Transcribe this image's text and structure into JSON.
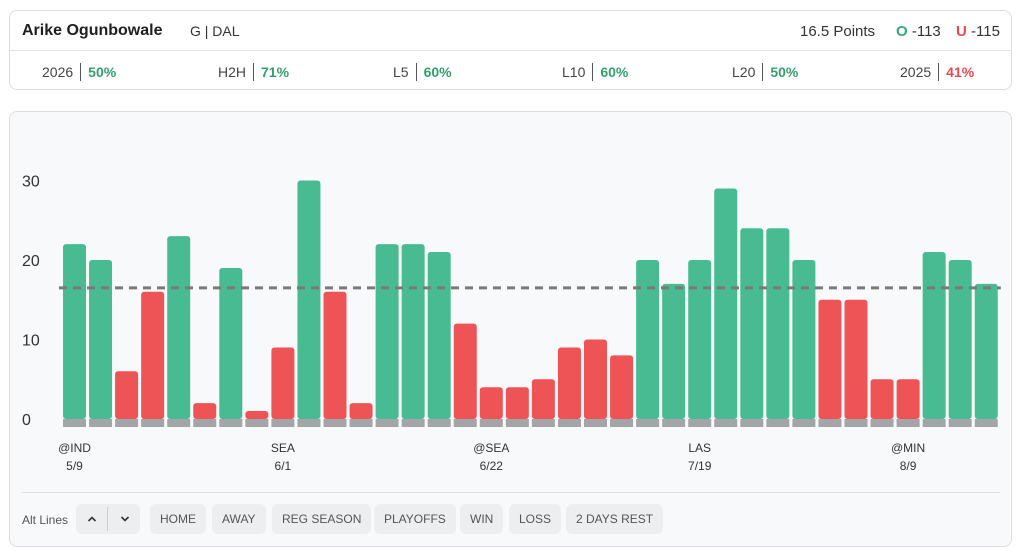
{
  "header": {
    "player_name": "Arike Ogunbowale",
    "player_meta": "G | DAL",
    "line_label": "16.5 Points",
    "over_letter": "O",
    "over_odds": "-113",
    "under_letter": "U",
    "under_odds": "-115"
  },
  "stats": [
    {
      "label": "2026",
      "value": "50%",
      "status": "good"
    },
    {
      "label": "H2H",
      "value": "71%",
      "status": "good"
    },
    {
      "label": "L5",
      "value": "60%",
      "status": "good"
    },
    {
      "label": "L10",
      "value": "60%",
      "status": "good"
    },
    {
      "label": "L20",
      "value": "50%",
      "status": "good"
    },
    {
      "label": "2025",
      "value": "41%",
      "status": "bad"
    }
  ],
  "colors": {
    "over": "#49bb93",
    "under": "#ee5356",
    "base": "#a3a5a8",
    "line": "#7a7a7a",
    "good_text": "#35a06f",
    "bad_text": "#e8494f"
  },
  "chart_data": {
    "type": "bar",
    "line_value": 16.5,
    "ylim": [
      0,
      33
    ],
    "yticks": [
      0,
      10,
      20,
      30
    ],
    "values": [
      22,
      20,
      6,
      16,
      23,
      2,
      19,
      1,
      9,
      30,
      16,
      2,
      22,
      22,
      21,
      12,
      4,
      4,
      5,
      9,
      10,
      8,
      20,
      17,
      20,
      29,
      24,
      24,
      20,
      15,
      15,
      5,
      5,
      21,
      20,
      17
    ],
    "x_labels": [
      {
        "index": 0,
        "opp": "@IND",
        "date": "5/9"
      },
      {
        "index": 8,
        "opp": "SEA",
        "date": "6/1"
      },
      {
        "index": 16,
        "opp": "@SEA",
        "date": "6/22"
      },
      {
        "index": 24,
        "opp": "LAS",
        "date": "7/19"
      },
      {
        "index": 32,
        "opp": "@MIN",
        "date": "8/9"
      }
    ]
  },
  "filters": {
    "alt_lines_label": "Alt Lines",
    "up_icon": "chevron-up-icon",
    "down_icon": "chevron-down-icon",
    "chips": [
      "HOME",
      "AWAY",
      "REG SEASON",
      "PLAYOFFS",
      "WIN",
      "LOSS",
      "2 DAYS REST"
    ]
  }
}
